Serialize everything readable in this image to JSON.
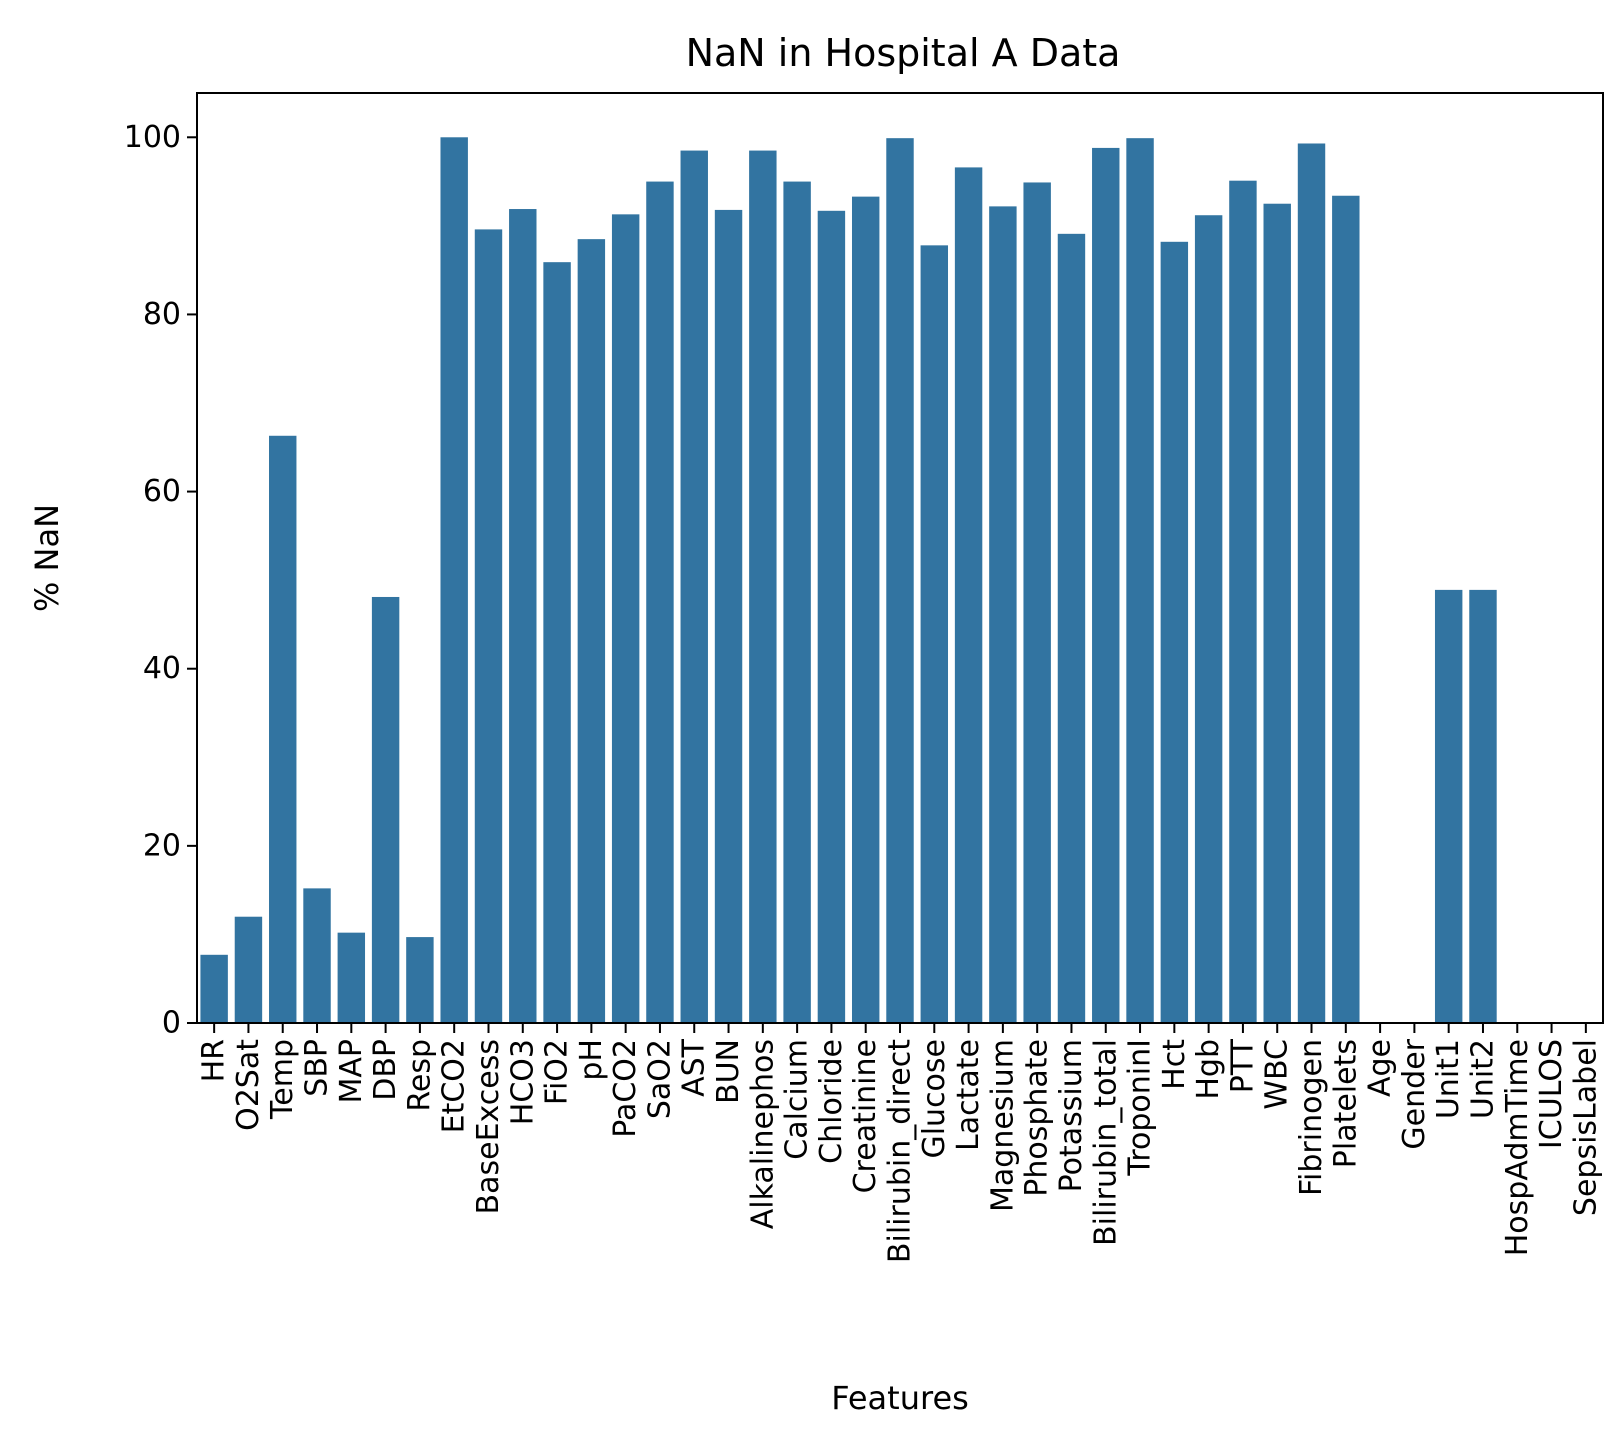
{
  "chart_data": {
    "type": "bar",
    "title": "NaN in Hospital A Data",
    "xlabel": "Features",
    "ylabel": "% NaN",
    "ylim": [
      0,
      105
    ],
    "yticks": [
      0,
      20,
      40,
      60,
      80,
      100
    ],
    "bar_color": "#3274a1",
    "grid": false,
    "categories": [
      "HR",
      "O2Sat",
      "Temp",
      "SBP",
      "MAP",
      "DBP",
      "Resp",
      "EtCO2",
      "BaseExcess",
      "HCO3",
      "FiO2",
      "pH",
      "PaCO2",
      "SaO2",
      "AST",
      "BUN",
      "Alkalinephos",
      "Calcium",
      "Chloride",
      "Creatinine",
      "Bilirubin_direct",
      "Glucose",
      "Lactate",
      "Magnesium",
      "Phosphate",
      "Potassium",
      "Bilirubin_total",
      "TroponinI",
      "Hct",
      "Hgb",
      "PTT",
      "WBC",
      "Fibrinogen",
      "Platelets",
      "Age",
      "Gender",
      "Unit1",
      "Unit2",
      "HospAdmTime",
      "ICULOS",
      "SepsisLabel"
    ],
    "values": [
      7.7,
      12.0,
      66.3,
      15.2,
      10.2,
      48.1,
      9.7,
      100.0,
      89.6,
      91.9,
      85.9,
      88.5,
      91.3,
      95.0,
      98.5,
      91.8,
      98.5,
      95.0,
      91.7,
      93.3,
      99.9,
      87.8,
      96.6,
      92.2,
      94.9,
      89.1,
      98.8,
      99.9,
      88.2,
      91.2,
      95.1,
      92.5,
      99.3,
      93.4,
      0,
      0,
      48.9,
      48.9,
      0,
      0,
      0
    ]
  }
}
